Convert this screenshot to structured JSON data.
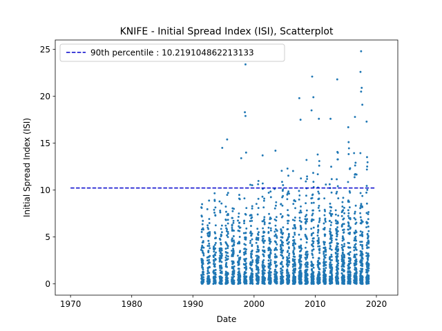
{
  "chart_data": {
    "type": "scatter",
    "title": "KNIFE - Initial Spread Index (ISI), Scatterplot",
    "xlabel": "Date",
    "ylabel": "Initial Spread Index (ISI)",
    "xlim": [
      1967.5,
      2023.5
    ],
    "ylim": [
      -1.2,
      26
    ],
    "xticks": [
      1970,
      1980,
      1990,
      2000,
      2010,
      2020
    ],
    "yticks": [
      0,
      5,
      10,
      15,
      20,
      25
    ],
    "grid": false,
    "legend_position": "top-left",
    "colors": {
      "points": "#1f77b4",
      "reference_line": "#0000cc"
    },
    "series": [
      {
        "kind": "scatter",
        "x_range_years": [
          1991,
          2019
        ],
        "seasonal_clusters": true,
        "outliers": [
          {
            "x": 1994.8,
            "y": 14.5
          },
          {
            "x": 1995.6,
            "y": 15.4
          },
          {
            "x": 1997.9,
            "y": 13.4
          },
          {
            "x": 1998.6,
            "y": 23.4
          },
          {
            "x": 1998.5,
            "y": 18.3
          },
          {
            "x": 1998.6,
            "y": 17.9
          },
          {
            "x": 1998.7,
            "y": 14.0
          },
          {
            "x": 2001.4,
            "y": 13.7
          },
          {
            "x": 2003.5,
            "y": 14.2
          },
          {
            "x": 2007.4,
            "y": 19.8
          },
          {
            "x": 2007.6,
            "y": 17.5
          },
          {
            "x": 2009.5,
            "y": 22.1
          },
          {
            "x": 2009.7,
            "y": 19.9
          },
          {
            "x": 2009.4,
            "y": 18.5
          },
          {
            "x": 2010.6,
            "y": 17.6
          },
          {
            "x": 2013.6,
            "y": 21.8
          },
          {
            "x": 2012.5,
            "y": 17.6
          },
          {
            "x": 2015.4,
            "y": 16.7
          },
          {
            "x": 2016.5,
            "y": 17.8
          },
          {
            "x": 2017.5,
            "y": 24.8
          },
          {
            "x": 2017.4,
            "y": 22.6
          },
          {
            "x": 2017.6,
            "y": 20.9
          },
          {
            "x": 2017.5,
            "y": 20.5
          },
          {
            "x": 2017.7,
            "y": 19.1
          },
          {
            "x": 2018.4,
            "y": 17.3
          }
        ]
      },
      {
        "kind": "hline",
        "name": "90th percentile : 10.219104862213133",
        "y": 10.219104862213133,
        "x_range": [
          1970,
          2019.8
        ],
        "style": "dashed"
      }
    ]
  }
}
